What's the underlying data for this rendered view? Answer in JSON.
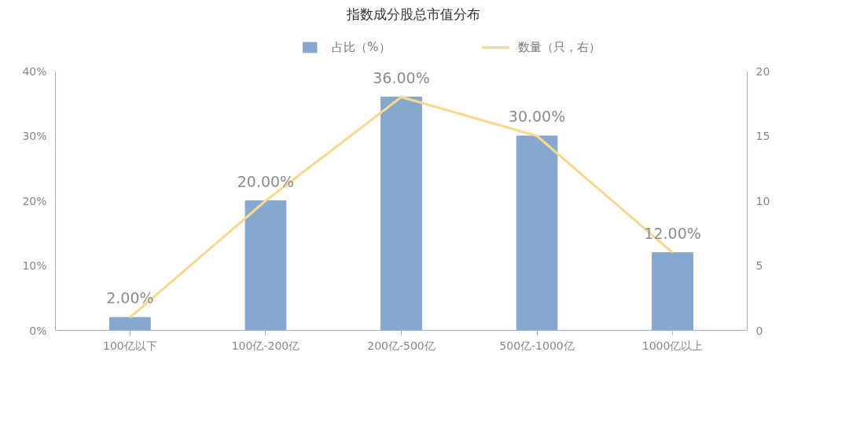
{
  "chart_data": {
    "type": "bar",
    "title": "指数成分股总市值分布",
    "categories": [
      "100亿以下",
      "100亿-200亿",
      "200亿-500亿",
      "500亿-1000亿",
      "1000亿以上"
    ],
    "series": [
      {
        "name": "占比（%）",
        "color": "#86a8cf",
        "values": [
          2,
          20,
          36,
          30,
          12
        ],
        "value_labels": [
          "2.00%",
          "20.00%",
          "36.00%",
          "30.00%",
          "12.00%"
        ]
      },
      {
        "name": "数量（只，右）",
        "type": "line",
        "axis": "y2",
        "color": "#f8d98c",
        "values": [
          1,
          10,
          18,
          15,
          6
        ]
      }
    ],
    "ylim": [
      0,
      40
    ],
    "yticks": [
      {
        "value": 0,
        "label": "0%"
      },
      {
        "value": 10,
        "label": "10%"
      },
      {
        "value": 20,
        "label": "20%"
      },
      {
        "value": 30,
        "label": "30%"
      },
      {
        "value": 40,
        "label": "40%"
      }
    ],
    "y2lim": [
      0,
      20
    ],
    "y2ticks": [
      0,
      5,
      10,
      15,
      20
    ],
    "legend": "top",
    "grid": false,
    "marker": "none",
    "line_style": "solid"
  }
}
